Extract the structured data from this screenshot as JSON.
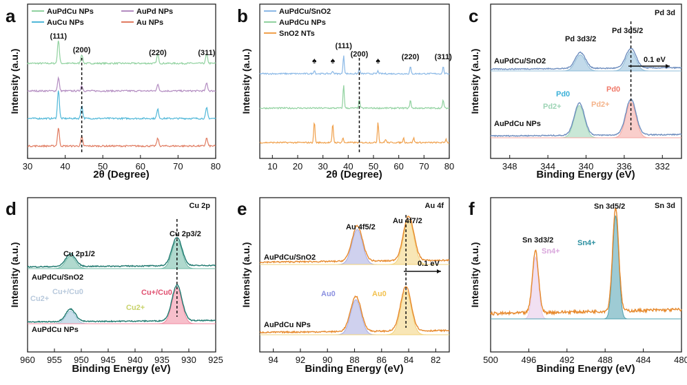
{
  "chart_data": [
    {
      "id": "a",
      "type": "line",
      "panel_label": "a",
      "xlabel": "2θ (Degree)",
      "ylabel": "Intensity (a.u.)",
      "xlim": [
        30,
        80
      ],
      "xticks": [
        "30",
        "40",
        "50",
        "60",
        "70",
        "80"
      ],
      "legend_position": "top",
      "series": [
        {
          "name": "AuPdCu NPs",
          "color": "#8fd19e",
          "offset": 3,
          "peaks": [
            [
              38.2,
              0.9
            ],
            [
              44.4,
              0.35
            ],
            [
              64.6,
              0.35
            ],
            [
              77.6,
              0.35
            ]
          ]
        },
        {
          "name": "AuPd NPs",
          "color": "#b28bc0",
          "offset": 2,
          "peaks": [
            [
              38.2,
              0.5
            ],
            [
              44.4,
              0.2
            ],
            [
              64.6,
              0.25
            ],
            [
              77.6,
              0.3
            ]
          ]
        },
        {
          "name": "AuCu NPs",
          "color": "#4fb7d8",
          "offset": 1,
          "peaks": [
            [
              38.2,
              1.1
            ],
            [
              44.4,
              0.5
            ],
            [
              64.6,
              0.35
            ],
            [
              77.6,
              0.4
            ]
          ]
        },
        {
          "name": "Au NPs",
          "color": "#e07a5f",
          "offset": 0,
          "peaks": [
            [
              38.2,
              0.7
            ],
            [
              44.4,
              0.35
            ],
            [
              64.6,
              0.3
            ],
            [
              77.6,
              0.3
            ]
          ]
        }
      ],
      "peak_labels": [
        {
          "text": "(111)",
          "x": 38.2
        },
        {
          "text": "(200)",
          "x": 44.4
        },
        {
          "text": "(220)",
          "x": 64.6
        },
        {
          "text": "(311)",
          "x": 77.6
        }
      ],
      "dashed_line_x": 44.4
    },
    {
      "id": "b",
      "type": "line",
      "panel_label": "b",
      "xlabel": "2θ (Degree)",
      "ylabel": "Intensity (a.u.)",
      "xlim": [
        5,
        80
      ],
      "xticks": [
        "10",
        "20",
        "30",
        "40",
        "50",
        "60",
        "70",
        "80"
      ],
      "legend_position": "top-left",
      "series": [
        {
          "name": "AuPdCu/SnO2",
          "color": "#8ab8e6",
          "offset": 2,
          "peaks": [
            [
              26.6,
              0.15
            ],
            [
              33.9,
              0.12
            ],
            [
              38.2,
              0.8
            ],
            [
              44.4,
              0.2
            ],
            [
              51.8,
              0.12
            ],
            [
              64.6,
              0.3
            ],
            [
              77.6,
              0.3
            ]
          ]
        },
        {
          "name": "AuPdCu NPs",
          "color": "#8fd19e",
          "offset": 1,
          "peaks": [
            [
              38.2,
              1.0
            ],
            [
              44.4,
              0.35
            ],
            [
              64.6,
              0.35
            ],
            [
              77.6,
              0.35
            ]
          ]
        },
        {
          "name": "SnO2 NTs",
          "color": "#f0a04b",
          "offset": 0,
          "peaks": [
            [
              26.6,
              0.9
            ],
            [
              33.9,
              0.8
            ],
            [
              37.9,
              0.2
            ],
            [
              51.8,
              0.9
            ],
            [
              54.8,
              0.15
            ],
            [
              61.9,
              0.2
            ],
            [
              65.9,
              0.2
            ],
            [
              78.7,
              0.15
            ]
          ]
        }
      ],
      "peak_labels": [
        {
          "text": "(111)",
          "x": 38.2
        },
        {
          "text": "(200)",
          "x": 44.4
        },
        {
          "text": "(220)",
          "x": 64.6
        },
        {
          "text": "(311)",
          "x": 77.6
        }
      ],
      "spade_markers_x": [
        26.6,
        33.9,
        51.8
      ],
      "dashed_line_x": 44.4
    },
    {
      "id": "c",
      "type": "line",
      "panel_label": "c",
      "corner_label": "Pd 3d",
      "xlabel": "Binding Energy (eV)",
      "ylabel": "Intensity (a.u.)",
      "xlim": [
        350,
        330
      ],
      "xticks": [
        "348",
        "344",
        "340",
        "336",
        "332"
      ],
      "spectra": [
        {
          "name": "AuPdCu/SnO2",
          "line_color": "#6f8fc0",
          "peaks": [
            [
              340.6,
              0.45,
              "#8fbcd8"
            ],
            [
              335.3,
              0.55,
              "#8fbcd8"
            ]
          ]
        },
        {
          "name": "AuPdCu NPs",
          "line_color": "#6f8fc0",
          "peaks": [
            [
              340.7,
              0.9,
              "#9dd4b5"
            ],
            [
              335.3,
              1.0,
              "#f4a6a0"
            ]
          ]
        }
      ],
      "annotations": [
        {
          "text": "Pd 3d3/2",
          "pos": "upper"
        },
        {
          "text": "Pd 3d5/2",
          "pos": "upper"
        },
        {
          "text": "0.1 eV",
          "pos": "arrow"
        },
        {
          "text": "Pd0",
          "color": "#3ab0d8"
        },
        {
          "text": "Pd2+",
          "color": "#9dd4b5"
        },
        {
          "text": "Pd0",
          "color": "#f07a6a"
        },
        {
          "text": "Pd2+",
          "color": "#f4b38a"
        }
      ],
      "dashed_line_x": 335.3
    },
    {
      "id": "d",
      "type": "line",
      "panel_label": "d",
      "corner_label": "Cu 2p",
      "xlabel": "Binding Energy (eV)",
      "ylabel": "Intensity (a.u.)",
      "xlim": [
        960,
        925
      ],
      "xticks": [
        "960",
        "955",
        "950",
        "945",
        "940",
        "935",
        "930",
        "925"
      ],
      "spectra": [
        {
          "name": "AuPdCu/SnO2",
          "line_color": "#1f7a70",
          "peaks": [
            [
              952,
              0.35,
              "#6fb9a6"
            ],
            [
              932.2,
              0.8,
              "#6fb9a6"
            ]
          ]
        },
        {
          "name": "AuPdCu NPs",
          "line_color": "#1f7a70",
          "peaks": [
            [
              952,
              0.35,
              "#9cc3d8"
            ],
            [
              932.2,
              1.0,
              "#f08aa0"
            ]
          ]
        }
      ],
      "annotations": [
        {
          "text": "Cu 2p1/2"
        },
        {
          "text": "Cu 2p3/2"
        },
        {
          "text": "Cu2+",
          "color": "#b8c9dc"
        },
        {
          "text": "Cu+/Cu0",
          "color": "#b8c9dc"
        },
        {
          "text": "Cu+/Cu0",
          "color": "#e05070"
        },
        {
          "text": "Cu2+",
          "color": "#c8d26a"
        }
      ],
      "dashed_line_x": 932.2
    },
    {
      "id": "e",
      "type": "line",
      "panel_label": "e",
      "corner_label": "Au 4f",
      "xlabel": "Binding Energy (eV)",
      "ylabel": "Intensity (a.u.)",
      "xlim": [
        95,
        81
      ],
      "xticks": [
        "94",
        "92",
        "90",
        "88",
        "86",
        "84",
        "82"
      ],
      "spectra": [
        {
          "name": "AuPdCu/SnO2",
          "line_color": "#e8892b",
          "peaks": [
            [
              87.8,
              0.75,
              "#a7abe0"
            ],
            [
              84.0,
              0.95,
              "#f2d27a"
            ]
          ]
        },
        {
          "name": "AuPdCu NPs",
          "line_color": "#e8892b",
          "peaks": [
            [
              87.9,
              0.75,
              "#a7abe0"
            ],
            [
              84.2,
              0.95,
              "#f2d27a"
            ]
          ]
        }
      ],
      "annotations": [
        {
          "text": "Au 4f5/2"
        },
        {
          "text": "Au 4f7/2"
        },
        {
          "text": "0.1 eV"
        },
        {
          "text": "Au0",
          "color": "#8a8fe0"
        },
        {
          "text": "Au0",
          "color": "#f2c14e"
        }
      ],
      "dashed_line_x": 84.2
    },
    {
      "id": "f",
      "type": "line",
      "panel_label": "f",
      "corner_label": "Sn 3d",
      "xlabel": "Binding Energy (eV)",
      "ylabel": "Intensity (a.u.)",
      "xlim": [
        500,
        480
      ],
      "xticks": [
        "500",
        "496",
        "492",
        "488",
        "484",
        "480"
      ],
      "spectra": [
        {
          "name": "AuPdCu/SnO2",
          "line_color": "#e8892b",
          "peaks": [
            [
              495.3,
              0.6,
              "#e6c6e8"
            ],
            [
              486.9,
              1.0,
              "#4ea1b0"
            ]
          ]
        }
      ],
      "annotations": [
        {
          "text": "Sn 3d3/2"
        },
        {
          "text": "Sn 3d5/2"
        },
        {
          "text": "Sn4+",
          "color": "#d9a6dc"
        },
        {
          "text": "Sn4+",
          "color": "#2a8fa0"
        }
      ]
    }
  ]
}
